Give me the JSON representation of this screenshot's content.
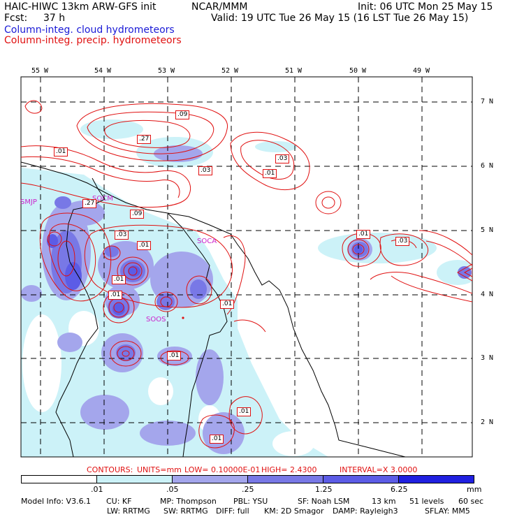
{
  "header": {
    "model_title": "HAIC-HIWC 13km ARW-GFS init",
    "org": "NCAR/MMM",
    "init": "Init: 06 UTC Mon 25 May 15",
    "fcst_label": "Fcst:",
    "fcst_value": "37 h",
    "valid": "Valid: 19 UTC Tue 26 May 15 (16 LST Tue 26 May 15)",
    "field_cloud": "Column-integ. cloud hydrometeors",
    "field_precip": "Column-integ. precip. hydrometeors"
  },
  "map": {
    "lon_labels": [
      "55 W",
      "54 W",
      "53 W",
      "52 W",
      "51 W",
      "50 W",
      "49 W"
    ],
    "lat_labels": [
      "7 N",
      "6 N",
      "5 N",
      "4 N",
      "3 N",
      "2 N"
    ],
    "stations": [
      "SMJP",
      "SOCM",
      "SOCA",
      "SOOS"
    ],
    "contour_labels": [
      ".09",
      ".27",
      ".01",
      ".03",
      ".03",
      ".01",
      ".27",
      ".09",
      ".03",
      ".01",
      ".01",
      ".03",
      ".01",
      ".01",
      ".01",
      ".01",
      ".01",
      ".01"
    ]
  },
  "contour_info": {
    "contours": "CONTOURS:",
    "units": "UNITS=mm",
    "low": "LOW= 0.10000E-01",
    "high": "HIGH= 2.4300",
    "interval": "INTERVAL=X 3.0000"
  },
  "legend": {
    "ticks": [
      ".01",
      ".05",
      ".25",
      "1.25",
      "6.25"
    ],
    "unit": "mm",
    "colors": [
      "#ffffff",
      "#ccf2f8",
      "#a4a6ec",
      "#7878e6",
      "#5c5ce6",
      "#2020e0"
    ]
  },
  "footer": {
    "line1": [
      "Model Info: V3.6.1",
      "CU: KF",
      "MP: Thompson",
      "PBL: YSU",
      "SF: Noah LSM",
      "13 km",
      "51 levels",
      "60 sec"
    ],
    "line2": [
      "LW: RRTMG",
      "SW: RRTMG",
      "DIFF: full",
      "KM: 2D Smagor",
      "DAMP: Rayleigh3",
      "SFLAY: MM5"
    ]
  }
}
